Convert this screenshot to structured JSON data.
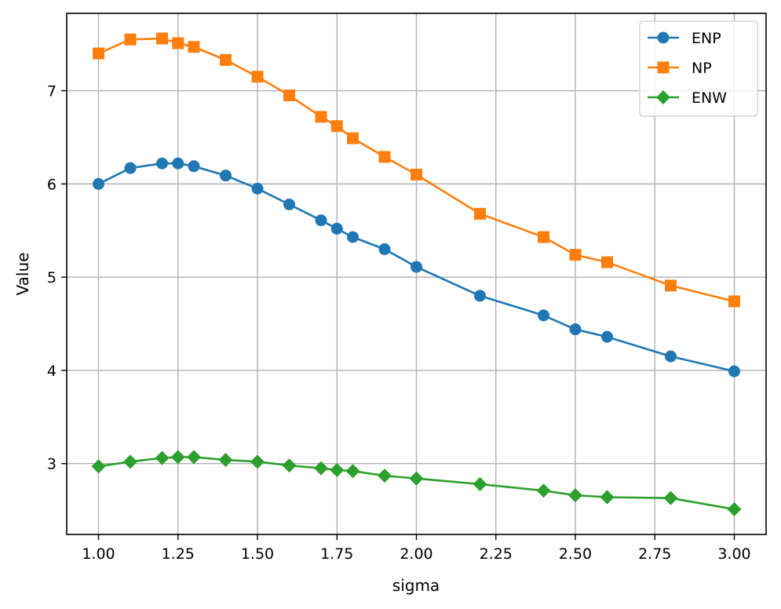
{
  "chart_data": {
    "type": "line",
    "title": "",
    "xlabel": "sigma",
    "ylabel": "Value",
    "xlim": [
      0.9,
      3.1
    ],
    "ylim": [
      2.24,
      7.83
    ],
    "xticks": [
      "1.00",
      "1.25",
      "1.50",
      "1.75",
      "2.00",
      "2.25",
      "2.50",
      "2.75",
      "3.00"
    ],
    "yticks": [
      "3",
      "4",
      "5",
      "6",
      "7"
    ],
    "grid": true,
    "legend_position": "top-right",
    "x": [
      1.0,
      1.1,
      1.2,
      1.25,
      1.3,
      1.4,
      1.5,
      1.6,
      1.7,
      1.75,
      1.8,
      1.9,
      2.0,
      2.2,
      2.4,
      2.5,
      2.6,
      2.8,
      3.0
    ],
    "series": [
      {
        "name": "ENP",
        "color": "#1f77b4",
        "marker": "circle",
        "values": [
          6.0,
          6.17,
          6.22,
          6.22,
          6.19,
          6.09,
          5.95,
          5.78,
          5.61,
          5.52,
          5.43,
          5.3,
          5.11,
          4.8,
          4.59,
          4.44,
          4.36,
          4.15,
          3.99
        ]
      },
      {
        "name": "NP",
        "color": "#ff7f0e",
        "marker": "square",
        "values": [
          7.4,
          7.55,
          7.56,
          7.51,
          7.47,
          7.33,
          7.15,
          6.95,
          6.72,
          6.62,
          6.49,
          6.29,
          6.1,
          5.68,
          5.43,
          5.24,
          5.16,
          4.91,
          4.74
        ]
      },
      {
        "name": "ENW",
        "color": "#2ca02c",
        "marker": "diamond",
        "values": [
          2.97,
          3.02,
          3.06,
          3.07,
          3.07,
          3.04,
          3.02,
          2.98,
          2.95,
          2.93,
          2.92,
          2.87,
          2.84,
          2.78,
          2.71,
          2.66,
          2.64,
          2.63,
          2.51
        ]
      }
    ]
  }
}
